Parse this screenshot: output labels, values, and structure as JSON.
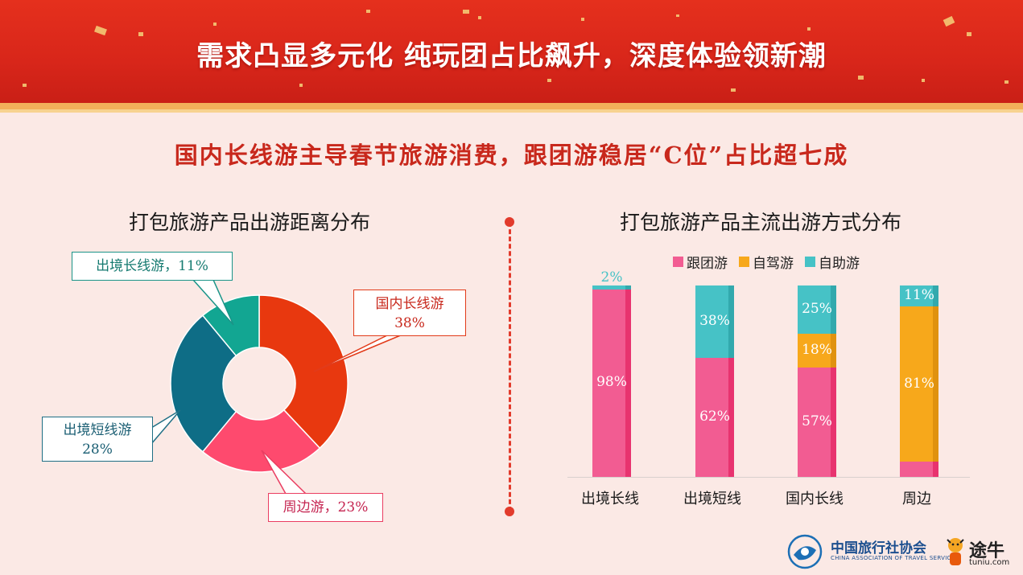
{
  "header": {
    "title": "需求凸显多元化  纯玩团占比飙升，深度体验领新潮",
    "subtitle": "国内长线游主导春节旅游消费，跟团游稳居“C位”占比超七成"
  },
  "colors": {
    "banner_red": "#e23320",
    "domestic_long": "#e8380f",
    "outbound_short": "#0e6d86",
    "outbound_long": "#12a692",
    "nearby": "#fe4a6e",
    "group_tour": "#f25c92",
    "self_drive": "#f7a81b",
    "free_tour": "#46c2c6"
  },
  "chart_data": [
    {
      "type": "pie",
      "title": "打包旅游产品出游距离分布",
      "slices": [
        {
          "name": "国内长线游",
          "value": 38,
          "label_line1": "国内长线游",
          "label_line2": "38%"
        },
        {
          "name": "周边游",
          "value": 23,
          "label_line1": "周边游，23%",
          "label_line2": ""
        },
        {
          "name": "出境短线游",
          "value": 28,
          "label_line1": "出境短线游",
          "label_line2": "28%"
        },
        {
          "name": "出境长线游",
          "value": 11,
          "label_line1": "出境长线游，11%",
          "label_line2": ""
        }
      ]
    },
    {
      "type": "bar",
      "stacked": true,
      "title": "打包旅游产品主流出游方式分布",
      "categories": [
        "出境长线",
        "出境短线",
        "国内长线",
        "周边"
      ],
      "series": [
        {
          "name": "跟团游",
          "values": [
            98,
            62,
            57,
            8
          ],
          "labels": [
            "98%",
            "62%",
            "57%",
            "8%"
          ]
        },
        {
          "name": "自驾游",
          "values": [
            0,
            0,
            18,
            81
          ],
          "labels": [
            "",
            "",
            "18%",
            "81%"
          ]
        },
        {
          "name": "自助游",
          "values": [
            2,
            38,
            25,
            11
          ],
          "labels": [
            "2%",
            "38%",
            "25%",
            "11%"
          ]
        }
      ],
      "legend": "top",
      "ylim": [
        0,
        100
      ]
    }
  ],
  "logos": {
    "cats_name": "中国旅行社协会",
    "cats_en": "CHINA ASSOCIATION OF TRAVEL SERVICES",
    "tuniu_name": "途牛",
    "tuniu_url": "tuniu.com"
  }
}
